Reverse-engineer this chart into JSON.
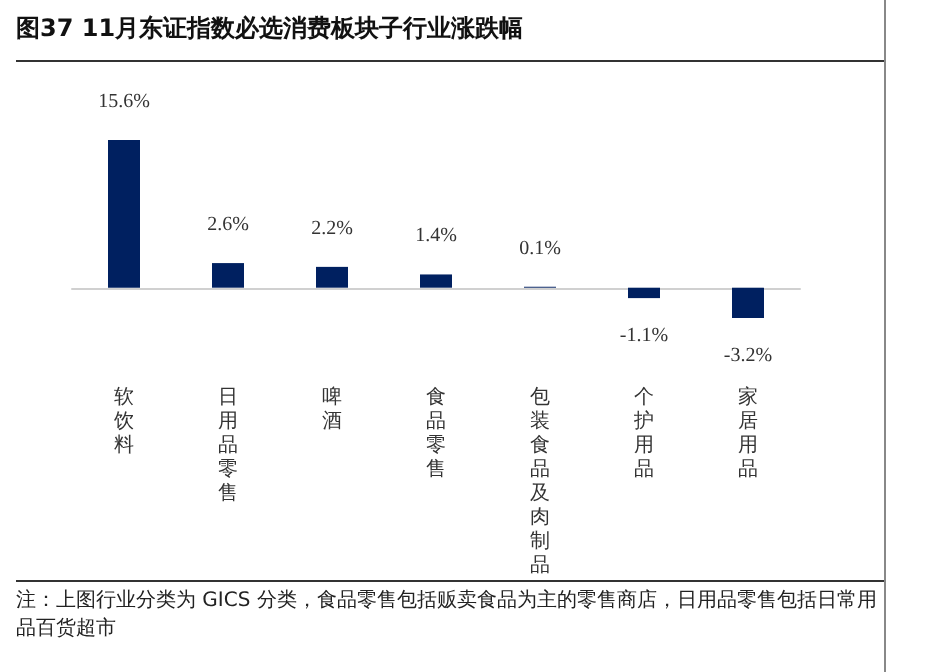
{
  "chart_data": {
    "type": "bar",
    "title": "图37 11月东证指数必选消费板块子行业涨跌幅",
    "categories": [
      "软饮料",
      "日用品零售",
      "啤酒",
      "食品零售",
      "包装食品及肉制品",
      "个护用品",
      "家居用品"
    ],
    "values": [
      15.6,
      2.6,
      2.2,
      1.4,
      0.1,
      -1.1,
      -3.2
    ],
    "value_labels": [
      "15.6%",
      "2.6%",
      "2.2%",
      "1.4%",
      "0.1%",
      "-1.1%",
      "-3.2%"
    ],
    "color": "#002060",
    "annotations": [
      "注：上图行业分类为 GICS 分类，食品零售包括贩卖食品为主的零售商店，日用品零售包括日常用品百货超市"
    ]
  }
}
